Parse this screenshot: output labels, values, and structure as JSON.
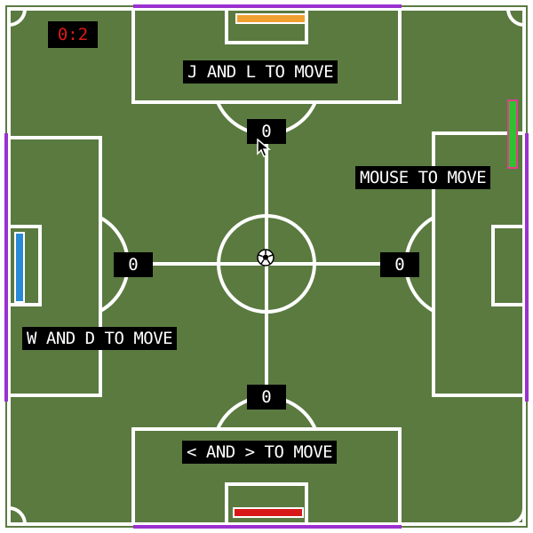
{
  "game": {
    "timer": "0:2",
    "colors": {
      "grass": "#5a7a40",
      "lines": "#ffffff",
      "boundary": "#9b30d0",
      "timer_text": "#e01818",
      "paddle_top": "#f0a030",
      "paddle_bottom": "#d81818",
      "paddle_left": "#2a8ad8",
      "paddle_right": "#30c030",
      "paddle_right_frame": "#e0408a"
    },
    "players": {
      "top": {
        "instructions": "J AND L TO MOVE",
        "score": "0"
      },
      "right": {
        "instructions": "MOUSE TO MOVE",
        "score": "0"
      },
      "left": {
        "instructions": "W AND D TO MOVE",
        "score": "0"
      },
      "bottom": {
        "instructions": "< AND > TO MOVE",
        "score": "0"
      }
    },
    "icons": {
      "ball": "soccer-ball-icon",
      "cursor": "mouse-pointer-icon"
    }
  }
}
